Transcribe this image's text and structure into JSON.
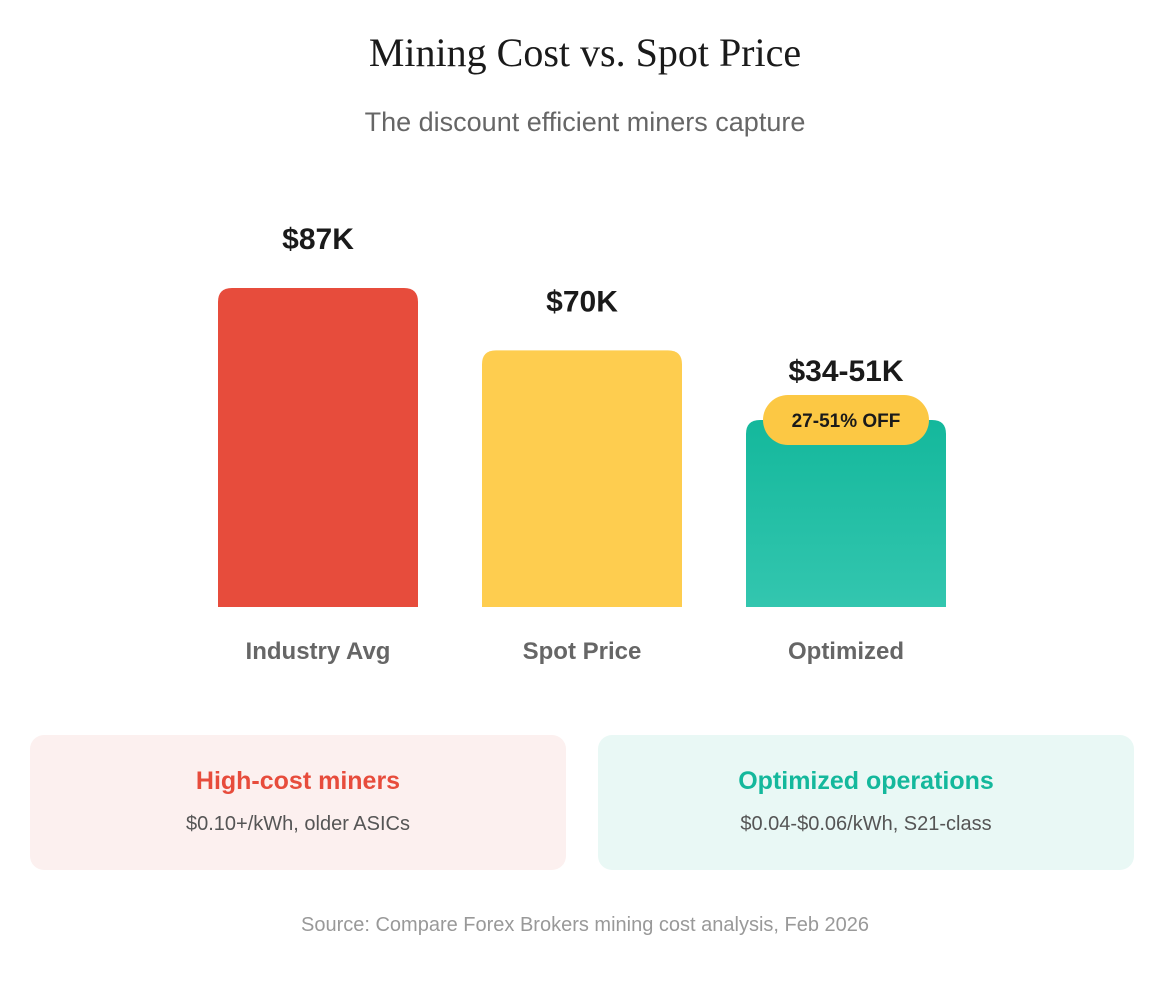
{
  "chart_data": {
    "type": "bar",
    "title": "Mining Cost vs. Spot Price",
    "subtitle": "The discount efficient miners capture",
    "categories": [
      "Industry Avg",
      "Spot Price",
      "Optimized"
    ],
    "values": [
      87,
      70,
      51
    ],
    "value_units": "$K",
    "value_labels": [
      "$87K",
      "$70K",
      "$34-51K"
    ],
    "optimized_range": [
      34,
      51
    ],
    "colors": [
      "#e74c3c",
      "#fecd4f",
      "#14b89c"
    ],
    "badge": {
      "label": "27-51% OFF",
      "category": "Optimized",
      "color": "#fcc844"
    },
    "ylim": [
      0,
      87
    ],
    "xlabel": "",
    "ylabel": "",
    "grid": false
  },
  "cards": [
    {
      "title": "High-cost miners",
      "desc": "$0.10+/kWh, older ASICs",
      "color": "#e74c3c"
    },
    {
      "title": "Optimized operations",
      "desc": "$0.04-$0.06/kWh, S21-class",
      "color": "#14b89c"
    }
  ],
  "source": "Source: Compare Forex Brokers mining cost analysis, Feb 2026"
}
